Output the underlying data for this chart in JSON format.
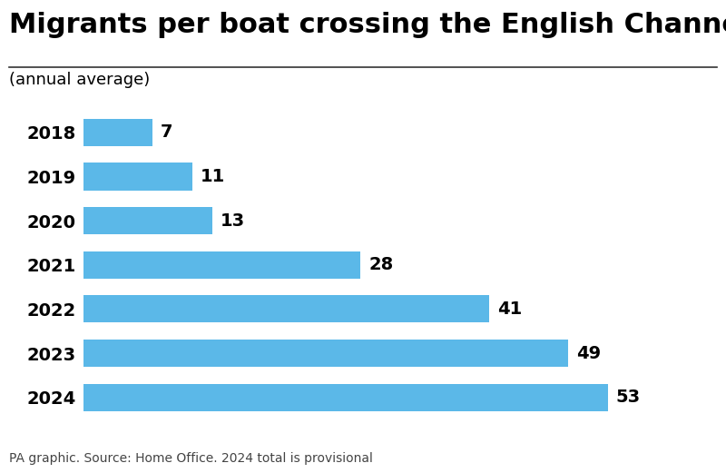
{
  "title": "Migrants per boat crossing the English Channel",
  "subtitle": "(annual average)",
  "years": [
    "2018",
    "2019",
    "2020",
    "2021",
    "2022",
    "2023",
    "2024"
  ],
  "values": [
    7,
    11,
    13,
    28,
    41,
    49,
    53
  ],
  "bar_color": "#5BB8E8",
  "label_color": "#000000",
  "title_fontsize": 22,
  "subtitle_fontsize": 13,
  "label_fontsize": 14,
  "tick_fontsize": 14,
  "source_text": "PA graphic. Source: Home Office. 2024 total is provisional",
  "source_fontsize": 10,
  "background_color": "#ffffff",
  "xlim": [
    0,
    62
  ]
}
